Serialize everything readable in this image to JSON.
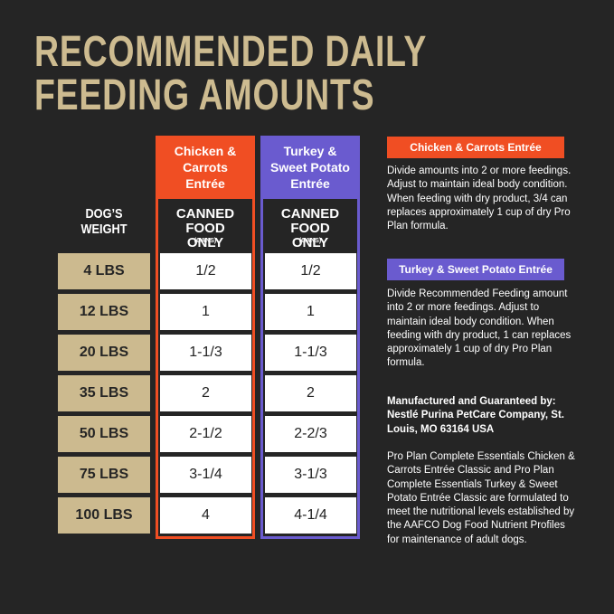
{
  "header": {
    "title_lines": [
      "RECOMMENDED DAILY",
      "FEEDING AMOUNTS"
    ]
  },
  "table": {
    "weight_header": "DOG’S WEIGHT",
    "columns": [
      {
        "name": "Chicken & Carrots Entrée",
        "subheader": "CANNED FOOD ONLY",
        "unit": "(CANS)"
      },
      {
        "name": "Turkey & Sweet Potato Entrée",
        "subheader": "CANNED FOOD ONLY",
        "unit": "(CANS)"
      }
    ],
    "rows": [
      [
        "4 LBS",
        "1/2",
        "1/2"
      ],
      [
        "12 LBS",
        "1",
        "1"
      ],
      [
        "20 LBS",
        "1-1/3",
        "1-1/3"
      ],
      [
        "35 LBS",
        "2",
        "2"
      ],
      [
        "50 LBS",
        "2-1/2",
        "2-2/3"
      ],
      [
        "75 LBS",
        "3-1/4",
        "3-1/3"
      ],
      [
        "100 LBS",
        "4",
        "4-1/4"
      ]
    ]
  },
  "notes": {
    "sections": [
      {
        "label": "Chicken & Carrots Entrée",
        "text": "Divide amounts into 2 or more feedings. Adjust to maintain ideal body condition. When feeding with dry product, 3/4 can replaces approximately 1 cup of dry Pro Plan formula."
      },
      {
        "label": "Turkey & Sweet Potato Entrée",
        "text": "Divide Recommended Feeding amount into 2 or more feedings. Adjust to maintain ideal body condition. When feeding with dry product, 1 can replaces approximately 1 cup of dry Pro Plan formula."
      }
    ],
    "manufacturer": "Manufactured and Guaranteed by: Nestlé Purina PetCare Company, St. Louis, MO 63164 USA",
    "statement": "Pro Plan Complete Essentials Chicken & Carrots Entrée Classic and Pro Plan Complete Essentials Turkey & Sweet Potato Entrée Classic are formulated to meet the nutritional levels established by the AAFCO Dog Food Nutrient Profiles for maintenance of adult dogs."
  }
}
